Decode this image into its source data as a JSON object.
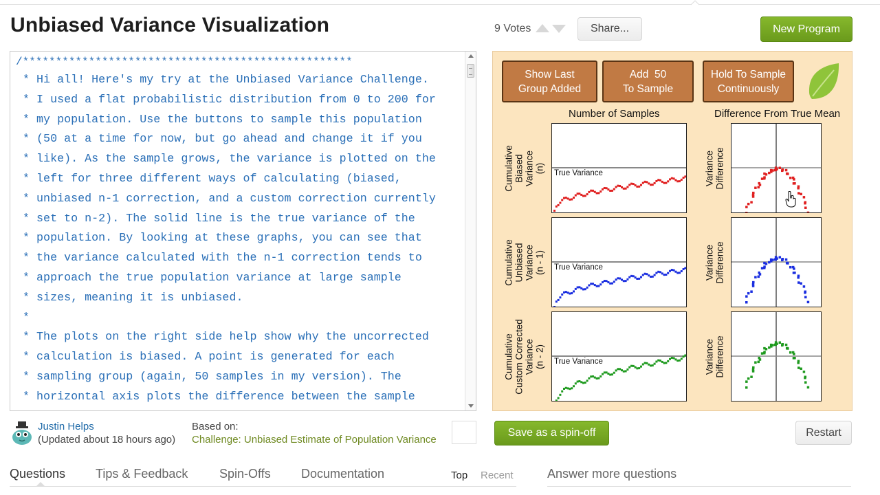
{
  "header": {
    "title": "Unbiased Variance Visualization",
    "votes": "9 Votes",
    "share_label": "Share...",
    "new_program_label": "New Program"
  },
  "editor": {
    "lines": [
      "/**************************************************",
      " * Hi all! Here's my try at the Unbiased Variance Challenge.",
      " * I used a flat probabilistic distribution from 0 to 200 for",
      " * my population. Use the buttons to sample this population",
      " * (50 at a time for now, but go ahead and change it if you",
      " * like). As the sample grows, the variance is plotted on the",
      " * left for three different ways of calculating (biased,",
      " * unbiased n-1 correction, and a custom correction currently",
      " * set to n-2). The solid line is the true variance of the",
      " * population. By looking at these graphs, you can see that",
      " * the variance calculated with the n-1 correction tends to",
      " * approach the true population variance at large sample",
      " * sizes, meaning it is unbiased.",
      " *",
      " * The plots on the right side help show why the uncorrected",
      " * calculation is biased. A point is generated for each",
      " * sampling group (again, 50 samples in my version). The",
      " * horizontal axis plots the difference between the sample"
    ]
  },
  "canvas": {
    "buttons": [
      {
        "line1": "Show Last",
        "line2": "Group Added"
      },
      {
        "line1": "Add  50",
        "line2": "To Sample"
      },
      {
        "line1": "Hold To Sample",
        "line2": "Continuously"
      }
    ],
    "col_left_title": "Number of Samples",
    "col_right_title": "Difference From True Mean",
    "true_variance_label": "True Variance",
    "rows": [
      {
        "label_lines": [
          "Cumulative",
          "Biased",
          "Variance",
          "(n)"
        ],
        "color": "#e02020"
      },
      {
        "label_lines": [
          "Cumulative",
          "Unbiased",
          "Variance",
          "(n - 1)"
        ],
        "color": "#1a2ee0"
      },
      {
        "label_lines": [
          "Cumulative",
          "Custom Corrected",
          "Variance",
          "(n - 2)"
        ],
        "color": "#1f9a1f"
      }
    ],
    "right_label_lines": [
      "Variance",
      "Difference"
    ]
  },
  "footer": {
    "author_name": "Justin Helps",
    "author_updated": "(Updated about 18 hours ago)",
    "based_on_label": "Based on:",
    "based_on_link": "Challenge: Unbiased Estimate of Population Variance",
    "spinoff_label": "Save as a spin-off",
    "restart_label": "Restart"
  },
  "tabs": {
    "questions": "Questions",
    "tips": "Tips & Feedback",
    "spinoffs": "Spin-Offs",
    "documentation": "Documentation",
    "sort_top": "Top",
    "sort_recent": "Recent",
    "answer_more": "Answer more questions"
  }
}
